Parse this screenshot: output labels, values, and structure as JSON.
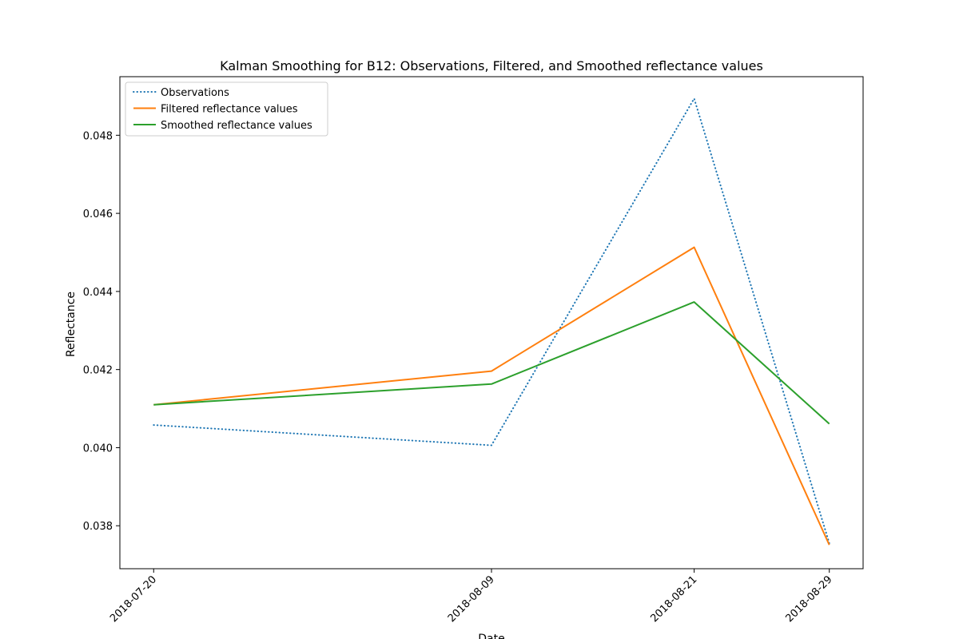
{
  "chart_data": {
    "type": "line",
    "title": "Kalman Smoothing for  B12: Observations, Filtered, and Smoothed reflectance values",
    "xlabel": "Date",
    "ylabel": "Reflectance",
    "x": [
      "2018-07-20",
      "2018-08-09",
      "2018-08-21",
      "2018-08-29"
    ],
    "x_ticks": [
      "2018-07-20",
      "2018-08-09",
      "2018-08-21",
      "2018-08-29"
    ],
    "y_ticks": [
      "0.038",
      "0.040",
      "0.042",
      "0.044",
      "0.046",
      "0.048"
    ],
    "ylim": [
      0.0369,
      0.0495
    ],
    "grid": false,
    "legend_position": "upper-left",
    "series": [
      {
        "name": "Observations",
        "values": [
          0.04058,
          0.04006,
          0.04894,
          0.03755
        ],
        "color": "#1f77b4",
        "style": "dotted"
      },
      {
        "name": "Filtered reflectance values",
        "values": [
          0.0411,
          0.04196,
          0.04513,
          0.03751
        ],
        "color": "#ff7f0e",
        "style": "solid"
      },
      {
        "name": "Smoothed reflectance values",
        "values": [
          0.0411,
          0.04163,
          0.04373,
          0.04061
        ],
        "color": "#2ca02c",
        "style": "solid"
      }
    ]
  }
}
